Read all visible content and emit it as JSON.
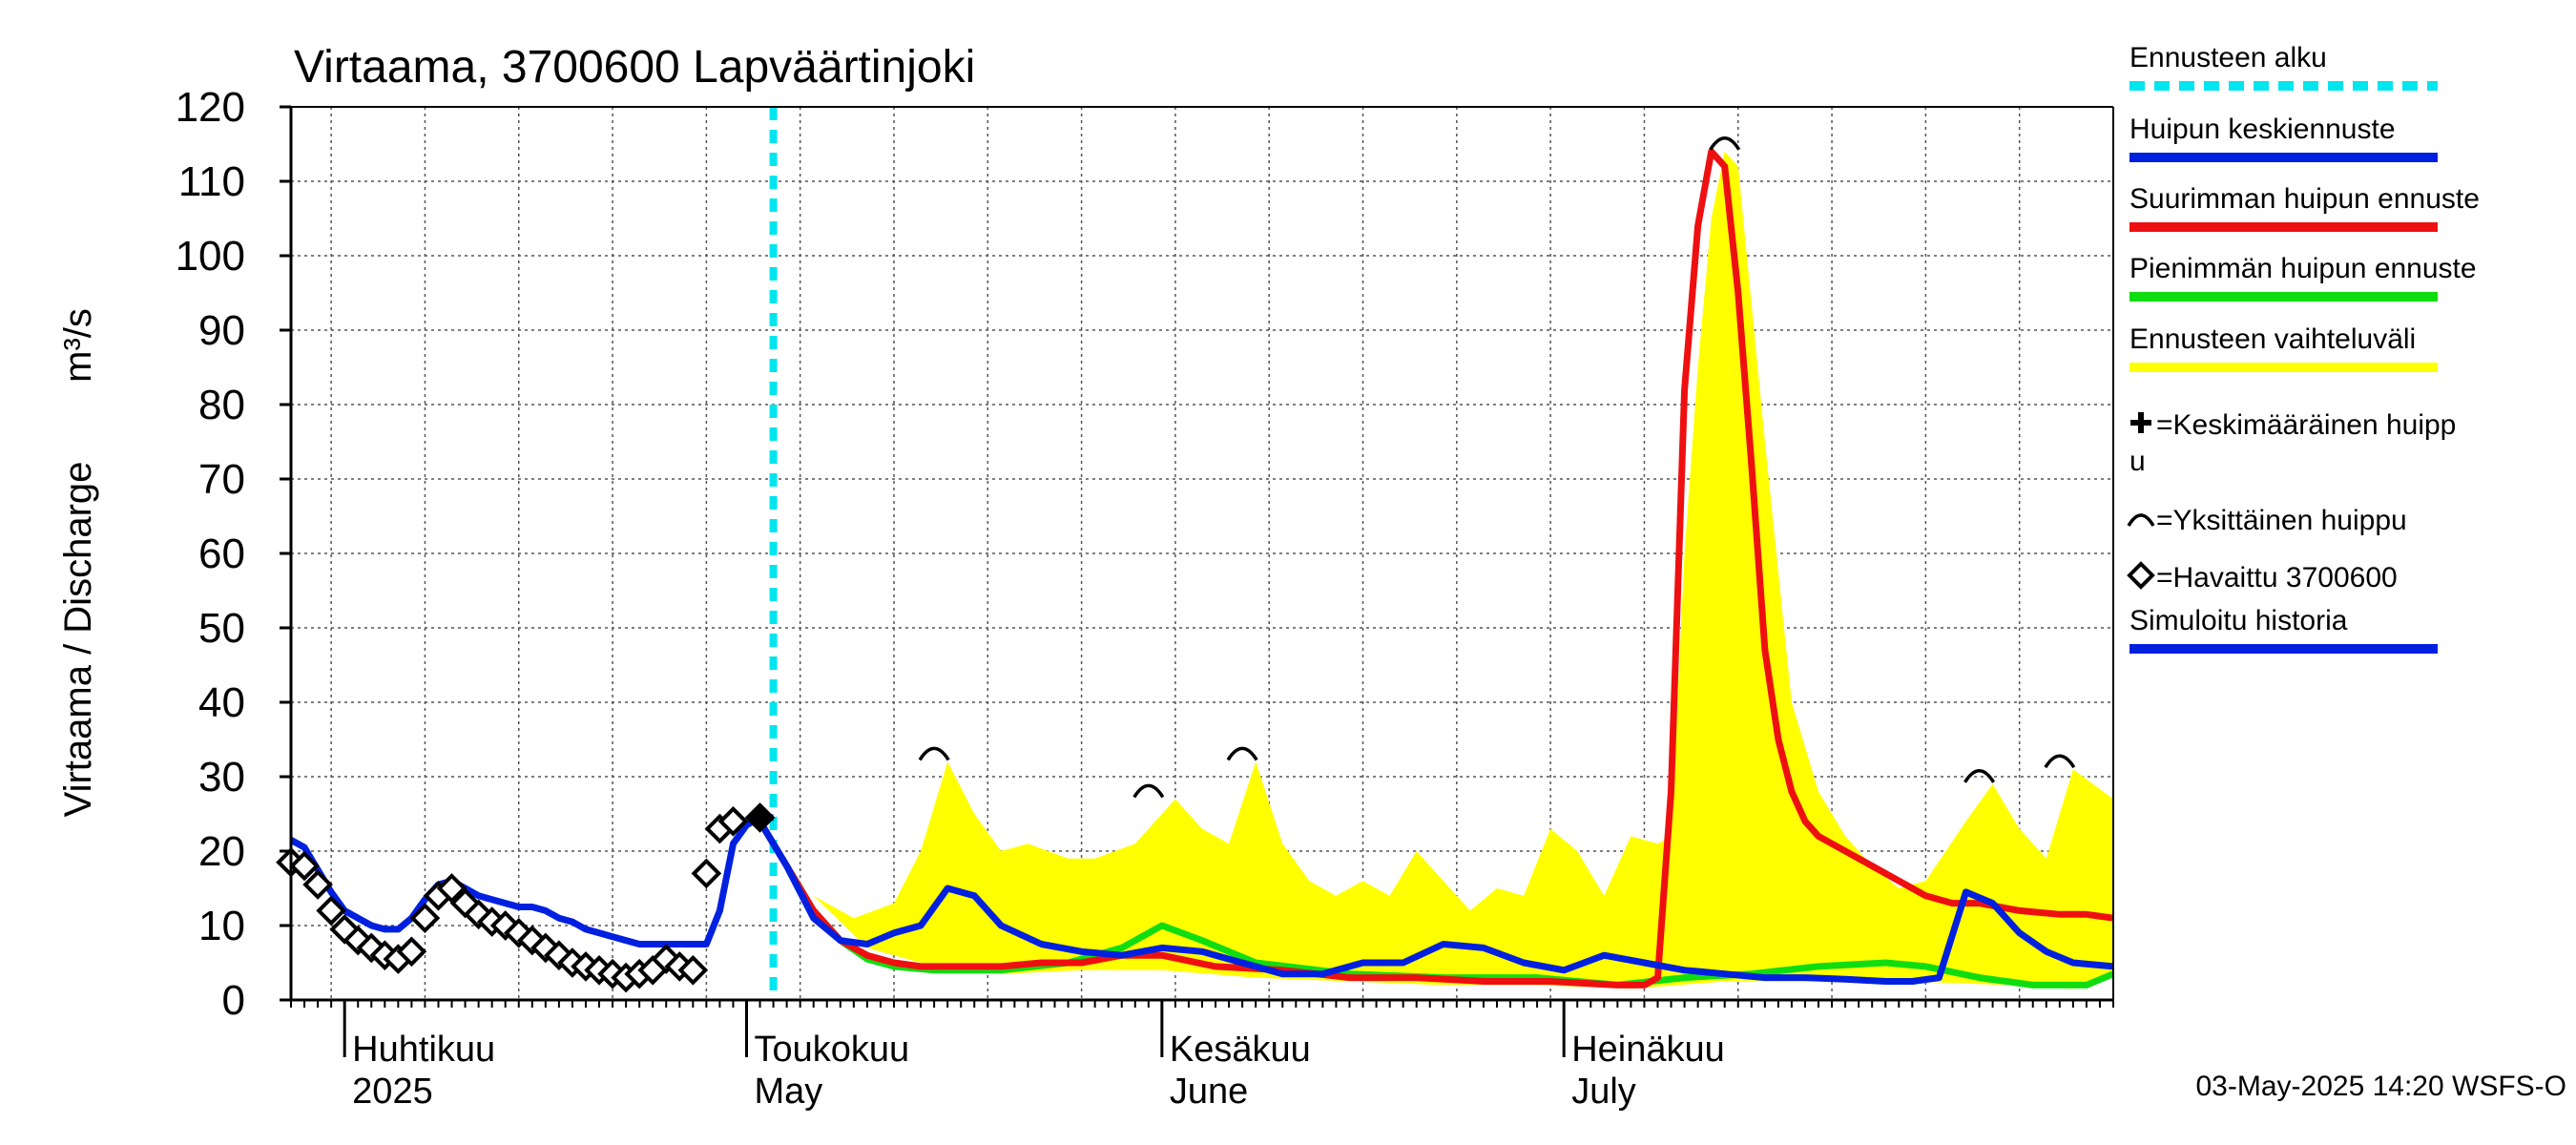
{
  "chart_data": {
    "type": "line",
    "title": "Virtaama, 3700600 Lapväärtinjoki",
    "ylabel": "Virtaama / Discharge",
    "yunit": "m³/s",
    "ylim": [
      0,
      120
    ],
    "yticks": [
      0,
      10,
      20,
      30,
      40,
      50,
      60,
      70,
      80,
      90,
      100,
      110,
      120
    ],
    "xlim": [
      "2025-03-28",
      "2025-08-11"
    ],
    "month_labels": [
      {
        "date": "2025-04-01",
        "fi": "Huhtikuu",
        "en": "2025"
      },
      {
        "date": "2025-05-01",
        "fi": "Toukokuu",
        "en": "May"
      },
      {
        "date": "2025-06-01",
        "fi": "Kesäkuu",
        "en": "June"
      },
      {
        "date": "2025-07-01",
        "fi": "Heinäkuu",
        "en": "July"
      }
    ],
    "forecast_start": "2025-05-03",
    "grid": true,
    "legend_position": "right",
    "legend": [
      {
        "label": "Ennusteen alku",
        "color": "#00e5ee",
        "style": "dashed"
      },
      {
        "label": "Huipun keskiennuste",
        "color": "#0020e0",
        "style": "line"
      },
      {
        "label": "Suurimman huipun ennuste",
        "color": "#ee1010",
        "style": "line"
      },
      {
        "label": "Pienimmän huipun ennuste",
        "color": "#10dd10",
        "style": "line"
      },
      {
        "label": "Ennusteen vaihteluväli",
        "color": "#ffff00",
        "style": "line"
      },
      {
        "label": "=Keskimääräinen huippu",
        "symbol": "cross"
      },
      {
        "label": "=Yksittäinen huippu",
        "symbol": "arc"
      },
      {
        "label": "=Havaittu 3700600",
        "symbol": "diamond"
      },
      {
        "label": "Simuloitu historia",
        "color": "#0020e0",
        "style": "line"
      }
    ],
    "footer": "03-May-2025 14:20 WSFS-O",
    "series": {
      "observed": {
        "x": [
          "2025-03-28",
          "2025-03-29",
          "2025-03-30",
          "2025-03-31",
          "2025-04-01",
          "2025-04-02",
          "2025-04-03",
          "2025-04-04",
          "2025-04-05",
          "2025-04-06",
          "2025-04-07",
          "2025-04-08",
          "2025-04-09",
          "2025-04-10",
          "2025-04-11",
          "2025-04-12",
          "2025-04-13",
          "2025-04-14",
          "2025-04-15",
          "2025-04-16",
          "2025-04-17",
          "2025-04-18",
          "2025-04-19",
          "2025-04-20",
          "2025-04-21",
          "2025-04-22",
          "2025-04-23",
          "2025-04-24",
          "2025-04-25",
          "2025-04-26",
          "2025-04-27",
          "2025-04-28",
          "2025-04-29",
          "2025-04-30",
          "2025-05-02"
        ],
        "y": [
          18.5,
          18,
          15.5,
          12,
          9.5,
          8,
          7,
          6,
          5.5,
          6.5,
          11,
          14,
          15,
          13,
          11.5,
          10.5,
          10,
          9,
          8,
          7,
          6,
          5,
          4.5,
          4,
          3.5,
          3,
          3.5,
          4,
          5.5,
          4.5,
          4,
          17,
          23,
          24,
          24.5
        ]
      },
      "simulated_history": {
        "x": [
          "2025-03-28",
          "2025-03-29",
          "2025-03-30",
          "2025-03-31",
          "2025-04-01",
          "2025-04-02",
          "2025-04-03",
          "2025-04-04",
          "2025-04-05",
          "2025-04-06",
          "2025-04-07",
          "2025-04-08",
          "2025-04-09",
          "2025-04-10",
          "2025-04-11",
          "2025-04-12",
          "2025-04-13",
          "2025-04-14",
          "2025-04-15",
          "2025-04-16",
          "2025-04-17",
          "2025-04-18",
          "2025-04-19",
          "2025-04-20",
          "2025-04-21",
          "2025-04-22",
          "2025-04-23",
          "2025-04-24",
          "2025-04-25",
          "2025-04-26",
          "2025-04-27",
          "2025-04-28",
          "2025-04-29",
          "2025-04-30",
          "2025-05-01",
          "2025-05-02",
          "2025-05-03"
        ],
        "y": [
          21.5,
          20.5,
          17.5,
          14.5,
          12,
          11,
          10,
          9.5,
          9.5,
          11,
          13.5,
          15.5,
          16,
          15,
          14,
          13.5,
          13,
          12.5,
          12.5,
          12,
          11,
          10.5,
          9.5,
          9,
          8.5,
          8,
          7.5,
          7.5,
          7.5,
          7.5,
          7.5,
          7.5,
          12,
          21,
          23.5,
          24.5,
          24.5
        ]
      },
      "range_upper": {
        "x": [
          "2025-05-02",
          "2025-05-06",
          "2025-05-09",
          "2025-05-12",
          "2025-05-14",
          "2025-05-16",
          "2025-05-18",
          "2025-05-20",
          "2025-05-22",
          "2025-05-25",
          "2025-05-27",
          "2025-05-30",
          "2025-06-02",
          "2025-06-04",
          "2025-06-06",
          "2025-06-08",
          "2025-06-10",
          "2025-06-12",
          "2025-06-14",
          "2025-06-16",
          "2025-06-18",
          "2025-06-20",
          "2025-06-22",
          "2025-06-24",
          "2025-06-26",
          "2025-06-28",
          "2025-06-30",
          "2025-07-02",
          "2025-07-04",
          "2025-07-06",
          "2025-07-08",
          "2025-07-09",
          "2025-07-10",
          "2025-07-11",
          "2025-07-12",
          "2025-07-13",
          "2025-07-14",
          "2025-07-16",
          "2025-07-18",
          "2025-07-20",
          "2025-07-22",
          "2025-07-24",
          "2025-07-26",
          "2025-07-28",
          "2025-07-31",
          "2025-08-02",
          "2025-08-04",
          "2025-08-06",
          "2025-08-08",
          "2025-08-11"
        ],
        "y": [
          24,
          14,
          11,
          13,
          20,
          32,
          25,
          20,
          21,
          19,
          19,
          21,
          27,
          23,
          21,
          32,
          21,
          16,
          14,
          16,
          14,
          20,
          16,
          12,
          15,
          14,
          23,
          20,
          14,
          22,
          21,
          22,
          60,
          85,
          105,
          114,
          112,
          75,
          40,
          28,
          22,
          18,
          15,
          16,
          24,
          29,
          23,
          19,
          31,
          27
        ]
      },
      "range_lower": {
        "x": [
          "2025-05-02",
          "2025-05-06",
          "2025-05-10",
          "2025-05-15",
          "2025-05-20",
          "2025-05-26",
          "2025-06-01",
          "2025-06-08",
          "2025-06-15",
          "2025-06-22",
          "2025-06-29",
          "2025-07-06",
          "2025-07-13",
          "2025-07-20",
          "2025-07-27",
          "2025-08-03",
          "2025-08-08",
          "2025-08-11"
        ],
        "y": [
          24,
          14,
          7,
          4.5,
          3.5,
          4,
          4,
          3,
          2.5,
          2,
          2,
          1.5,
          2.5,
          2.5,
          2.5,
          2,
          1.5,
          3
        ]
      },
      "max_peak_forecast": {
        "x": [
          "2025-05-02",
          "2025-05-04",
          "2025-05-06",
          "2025-05-08",
          "2025-05-10",
          "2025-05-12",
          "2025-05-14",
          "2025-05-17",
          "2025-05-20",
          "2025-05-23",
          "2025-05-26",
          "2025-05-29",
          "2025-06-01",
          "2025-06-05",
          "2025-06-10",
          "2025-06-15",
          "2025-06-20",
          "2025-06-25",
          "2025-06-30",
          "2025-07-05",
          "2025-07-07",
          "2025-07-08",
          "2025-07-09",
          "2025-07-10",
          "2025-07-11",
          "2025-07-12",
          "2025-07-13",
          "2025-07-14",
          "2025-07-15",
          "2025-07-16",
          "2025-07-17",
          "2025-07-18",
          "2025-07-19",
          "2025-07-20",
          "2025-07-22",
          "2025-07-24",
          "2025-07-26",
          "2025-07-28",
          "2025-07-30",
          "2025-08-01",
          "2025-08-04",
          "2025-08-07",
          "2025-08-09",
          "2025-08-11"
        ],
        "y": [
          24,
          18,
          12,
          8,
          6,
          5,
          4.5,
          4.5,
          4.5,
          5,
          5,
          6,
          6,
          4.5,
          4,
          3,
          3,
          2.5,
          2.5,
          2,
          2,
          3,
          28,
          82,
          104,
          114,
          112,
          95,
          72,
          47,
          35,
          28,
          24,
          22,
          20,
          18,
          16,
          14,
          13,
          13,
          12,
          11.5,
          11.5,
          11
        ]
      },
      "min_peak_forecast": {
        "x": [
          "2025-05-02",
          "2025-05-04",
          "2025-05-06",
          "2025-05-08",
          "2025-05-10",
          "2025-05-12",
          "2025-05-15",
          "2025-05-20",
          "2025-05-25",
          "2025-05-29",
          "2025-06-01",
          "2025-06-04",
          "2025-06-08",
          "2025-06-15",
          "2025-06-22",
          "2025-06-29",
          "2025-07-05",
          "2025-07-10",
          "2025-07-15",
          "2025-07-20",
          "2025-07-25",
          "2025-07-28",
          "2025-08-01",
          "2025-08-05",
          "2025-08-09",
          "2025-08-11"
        ],
        "y": [
          24,
          18,
          12,
          8,
          5.5,
          4.5,
          4,
          4,
          5,
          7,
          10,
          8,
          5,
          3.5,
          3,
          3,
          2,
          3,
          3.5,
          4.5,
          5,
          4.5,
          3,
          2,
          2,
          3.5
        ]
      },
      "mean_peak_forecast": {
        "x": [
          "2025-05-02",
          "2025-05-04",
          "2025-05-06",
          "2025-05-08",
          "2025-05-10",
          "2025-05-12",
          "2025-05-14",
          "2025-05-16",
          "2025-05-18",
          "2025-05-20",
          "2025-05-23",
          "2025-05-26",
          "2025-05-29",
          "2025-06-01",
          "2025-06-04",
          "2025-06-07",
          "2025-06-10",
          "2025-06-13",
          "2025-06-16",
          "2025-06-19",
          "2025-06-22",
          "2025-06-25",
          "2025-06-28",
          "2025-07-01",
          "2025-07-04",
          "2025-07-07",
          "2025-07-10",
          "2025-07-13",
          "2025-07-16",
          "2025-07-19",
          "2025-07-22",
          "2025-07-25",
          "2025-07-27",
          "2025-07-29",
          "2025-07-31",
          "2025-08-02",
          "2025-08-04",
          "2025-08-06",
          "2025-08-08",
          "2025-08-11"
        ],
        "y": [
          24,
          18,
          11,
          8,
          7.5,
          9,
          10,
          15,
          14,
          10,
          7.5,
          6.5,
          6,
          7,
          6.5,
          5,
          3.5,
          3.5,
          5,
          5,
          7.5,
          7,
          5,
          4,
          6,
          5,
          4,
          3.5,
          3,
          3,
          2.8,
          2.5,
          2.5,
          3,
          14.5,
          13,
          9,
          6.5,
          5,
          4.5
        ]
      }
    },
    "single_peaks": [
      {
        "x": "2025-05-15",
        "y": 32
      },
      {
        "x": "2025-05-31",
        "y": 27
      },
      {
        "x": "2025-06-07",
        "y": 32
      },
      {
        "x": "2025-07-13",
        "y": 114
      },
      {
        "x": "2025-08-01",
        "y": 29
      },
      {
        "x": "2025-08-07",
        "y": 31
      }
    ]
  }
}
